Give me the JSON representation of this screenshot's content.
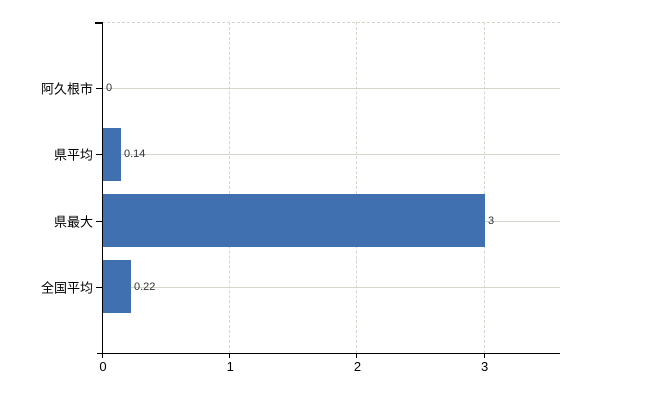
{
  "chart_data": {
    "type": "bar",
    "orientation": "horizontal",
    "title": "",
    "xlabel": "",
    "ylabel": "",
    "categories": [
      "阿久根市",
      "県平均",
      "県最大",
      "全国平均"
    ],
    "values": [
      0,
      0.14,
      3,
      0.22
    ],
    "value_labels": [
      "0",
      "0.14",
      "3",
      "0.22"
    ],
    "x_ticks": [
      0,
      1,
      2,
      3
    ],
    "x_tick_labels": [
      "0",
      "1",
      "2",
      "3"
    ],
    "xlim": [
      0,
      3.6
    ],
    "grid": true,
    "legend": false,
    "gridline_style": {
      "horizontal": "solid",
      "vertical": "dashed",
      "plot_top": "dashed"
    },
    "colors": {
      "bar": "#4170b0",
      "grid": "#d2d8cc",
      "axis": "#000000",
      "category_label": "#000000",
      "value_label": "#333333",
      "background": "#ffffff"
    }
  }
}
